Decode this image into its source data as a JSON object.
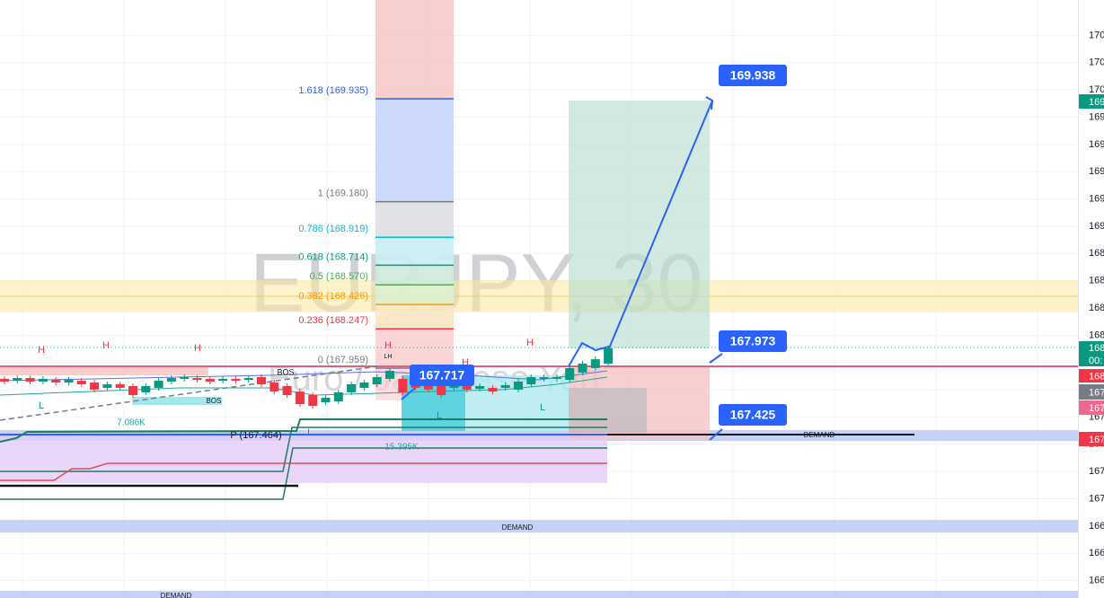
{
  "chart_data": {
    "type": "candlestick",
    "title": "EURJPY, 30",
    "subtitle": "Euro / Japanese Yen",
    "ylim": [
      166.272,
      170.66
    ],
    "yticks": [
      {
        "value": 170.4,
        "label": "170"
      },
      {
        "value": 170.2,
        "label": "170"
      },
      {
        "value": 170.0,
        "label": "170"
      },
      {
        "value": 169.8,
        "label": "169"
      },
      {
        "value": 169.6,
        "label": "169"
      },
      {
        "value": 169.4,
        "label": "169"
      },
      {
        "value": 169.2,
        "label": "169"
      },
      {
        "value": 169.0,
        "label": "169"
      },
      {
        "value": 168.8,
        "label": "168"
      },
      {
        "value": 168.6,
        "label": "168"
      },
      {
        "value": 168.4,
        "label": "168"
      },
      {
        "value": 168.2,
        "label": "168"
      },
      {
        "value": 168.0,
        "label": "168"
      },
      {
        "value": 167.8,
        "label": "167"
      },
      {
        "value": 167.6,
        "label": "167"
      },
      {
        "value": 167.4,
        "label": "167"
      },
      {
        "value": 167.2,
        "label": "167"
      },
      {
        "value": 167.0,
        "label": "167"
      },
      {
        "value": 166.8,
        "label": "166"
      },
      {
        "value": 166.6,
        "label": "166"
      },
      {
        "value": 166.4,
        "label": "166"
      }
    ],
    "up_color": "#089981",
    "down_color": "#f23645",
    "candles": {
      "open": [
        167.88,
        167.866,
        167.886,
        167.86,
        167.873,
        167.853,
        167.866,
        167.853,
        167.814,
        167.84,
        167.827,
        167.781,
        167.814,
        167.86,
        167.88,
        167.886,
        167.88,
        167.866,
        167.88,
        167.873,
        167.893,
        167.853,
        167.827,
        167.787,
        167.761,
        167.708,
        167.715,
        167.781,
        167.814,
        167.84,
        167.88,
        167.88,
        167.866,
        167.853,
        167.84,
        167.814,
        167.827,
        167.807,
        167.814,
        167.814,
        167.801,
        167.84,
        167.88,
        167.88,
        167.873,
        167.926,
        167.959,
        167.992
      ],
      "high": [
        167.9,
        167.906,
        167.906,
        167.9,
        167.893,
        167.893,
        167.886,
        167.873,
        167.86,
        167.86,
        167.847,
        167.847,
        167.886,
        167.906,
        167.913,
        167.906,
        167.9,
        167.9,
        167.9,
        167.906,
        167.913,
        167.873,
        167.847,
        167.807,
        167.781,
        167.761,
        167.801,
        167.86,
        167.873,
        167.913,
        167.959,
        167.9,
        167.886,
        167.873,
        167.86,
        167.847,
        167.847,
        167.847,
        167.834,
        167.854,
        167.88,
        167.913,
        167.913,
        167.913,
        167.979,
        168.012,
        168.044,
        168.124
      ],
      "low": [
        167.84,
        167.846,
        167.84,
        167.84,
        167.833,
        167.833,
        167.82,
        167.781,
        167.794,
        167.794,
        167.741,
        167.761,
        167.794,
        167.84,
        167.86,
        167.853,
        167.84,
        167.846,
        167.846,
        167.853,
        167.82,
        167.767,
        167.741,
        167.675,
        167.662,
        167.688,
        167.695,
        167.761,
        167.794,
        167.82,
        167.86,
        167.761,
        167.794,
        167.781,
        167.741,
        167.794,
        167.781,
        167.787,
        167.767,
        167.794,
        167.781,
        167.82,
        167.86,
        167.86,
        167.853,
        167.906,
        167.939,
        167.972
      ],
      "close": [
        167.86,
        167.886,
        167.86,
        167.88,
        167.853,
        167.873,
        167.84,
        167.801,
        167.84,
        167.814,
        167.761,
        167.827,
        167.866,
        167.886,
        167.893,
        167.873,
        167.86,
        167.88,
        167.866,
        167.886,
        167.84,
        167.787,
        167.761,
        167.695,
        167.682,
        167.741,
        167.781,
        167.84,
        167.853,
        167.893,
        167.939,
        167.781,
        167.814,
        167.801,
        167.761,
        167.827,
        167.801,
        167.827,
        167.787,
        167.834,
        167.86,
        167.893,
        167.893,
        167.893,
        167.959,
        167.992,
        168.024,
        168.104
      ]
    },
    "fib_levels": [
      {
        "label": "1.618 (169.935)",
        "value": 169.935,
        "color": "#2962ff"
      },
      {
        "label": "1 (169.180)",
        "value": 169.18,
        "color": "#787b86"
      },
      {
        "label": "0.786 (168.919)",
        "value": 168.919,
        "color": "#00bcd4"
      },
      {
        "label": "0.618 (168.714)",
        "value": 168.714,
        "color": "#089981"
      },
      {
        "label": "0.5 (168.570)",
        "value": 168.57,
        "color": "#4caf50"
      },
      {
        "label": "0.382 (168.426)",
        "value": 168.426,
        "color": "#ff9800"
      },
      {
        "label": "0.236 (168.247)",
        "value": 168.247,
        "color": "#f23645"
      },
      {
        "label": "0 (167.959)",
        "value": 167.959,
        "color": "#787b86"
      }
    ],
    "price_boxes": [
      169.938,
      167.973,
      167.717,
      167.425
    ],
    "annotations": [
      "H",
      "H",
      "H",
      "H",
      "H",
      "H",
      "LH",
      "L",
      "L",
      "L",
      "L",
      "BOS",
      "BOS",
      "7.086K",
      "15.395K",
      "P (167.464)",
      "DEMAND",
      "DEMAND",
      "DEMAND"
    ],
    "price_tags": [
      {
        "text": "169",
        "color": "#089981"
      },
      {
        "text": "168",
        "color": "#089981"
      },
      {
        "text": "00:",
        "color": "#089981"
      },
      {
        "text": "168",
        "color": "#f23645"
      },
      {
        "text": "167",
        "color": "#787b86"
      },
      {
        "text": "167",
        "color": "#ec6a8c"
      },
      {
        "text": "167",
        "color": "#f23645"
      }
    ]
  }
}
